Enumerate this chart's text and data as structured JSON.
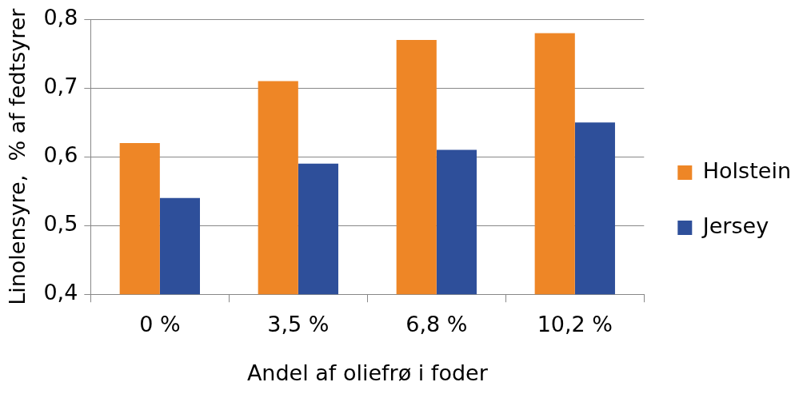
{
  "chart_data": {
    "type": "bar",
    "xlabel": "Andel af oliefrø i foder",
    "ylabel": "Linolensyre,  % af fedtsyrer",
    "categories": [
      "0 %",
      "3,5 %",
      "6,8 %",
      "10,2 %"
    ],
    "series": [
      {
        "name": "Holstein",
        "color": "#ee8626",
        "values": [
          0.62,
          0.71,
          0.77,
          0.78
        ]
      },
      {
        "name": "Jersey",
        "color": "#2e4f9a",
        "values": [
          0.54,
          0.59,
          0.61,
          0.65
        ]
      }
    ],
    "ylim": [
      0.4,
      0.8
    ],
    "yticks": [
      {
        "value": 0.4,
        "label": "0,4"
      },
      {
        "value": 0.5,
        "label": "0,5"
      },
      {
        "value": 0.6,
        "label": "0,6"
      },
      {
        "value": 0.7,
        "label": "0,7"
      },
      {
        "value": 0.8,
        "label": "0,8"
      }
    ],
    "grid": "y",
    "legend": "right"
  }
}
